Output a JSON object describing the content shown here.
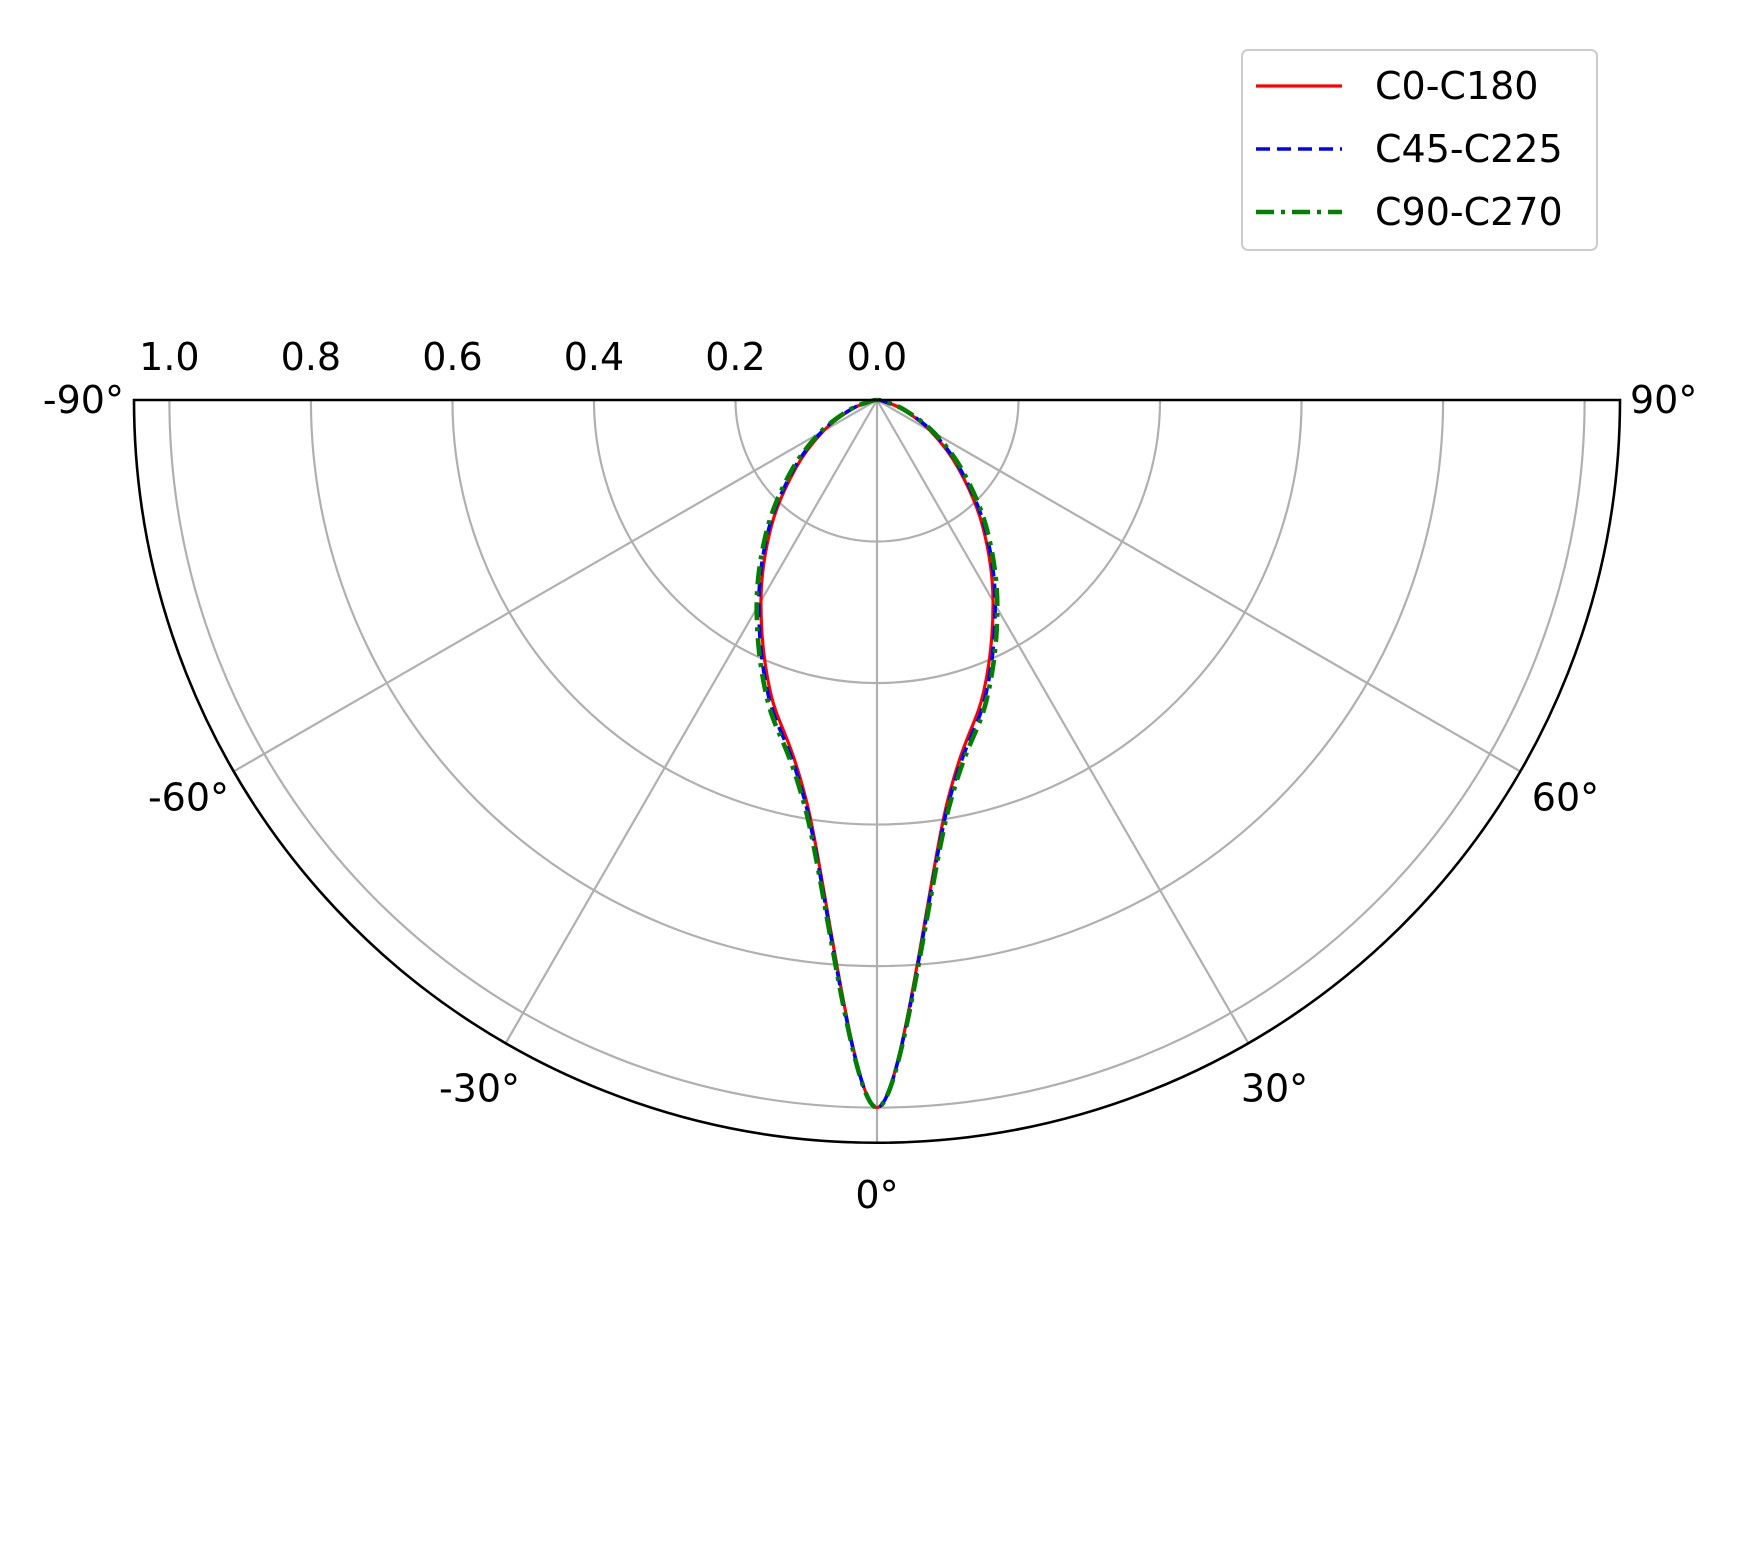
{
  "chart_data": {
    "type": "polar",
    "angle_range_deg": [
      -90,
      90
    ],
    "angle_zero_location": "bottom",
    "radial_axis_inverted": true,
    "radial_range": [
      0.0,
      1.05
    ],
    "radial_ticks": [
      "0.0",
      "0.2",
      "0.4",
      "0.6",
      "0.8",
      "1.0"
    ],
    "radial_tick_values": [
      0.0,
      0.2,
      0.4,
      0.6,
      0.8,
      1.0
    ],
    "angle_ticks": [
      "-90°",
      "-60°",
      "-30°",
      "0°",
      "30°",
      "60°",
      "90°"
    ],
    "angle_tick_values": [
      -90,
      -60,
      -30,
      0,
      30,
      60,
      90
    ],
    "grid": true,
    "legend_position": "top-right",
    "series": [
      {
        "name": "C0-C180",
        "color": "#ff0000",
        "linestyle": "solid",
        "angles": [
          -90,
          -80,
          -70,
          -60,
          -50,
          -40,
          -30,
          -20,
          -10,
          0,
          10,
          20,
          30,
          40,
          50,
          60,
          70,
          80,
          90
        ],
        "values": [
          1.0,
          0.992,
          0.962,
          0.913,
          0.85,
          0.768,
          0.672,
          0.56,
          0.425,
          0.0,
          0.425,
          0.56,
          0.672,
          0.768,
          0.85,
          0.913,
          0.962,
          0.992,
          1.0
        ]
      },
      {
        "name": "C45-C225",
        "color": "#0000ff",
        "linestyle": "dashed",
        "angles": [
          -90,
          -80,
          -70,
          -60,
          -50,
          -40,
          -30,
          -20,
          -10,
          0,
          10,
          20,
          30,
          40,
          50,
          60,
          70,
          80,
          90
        ],
        "values": [
          1.0,
          0.992,
          0.96,
          0.909,
          0.845,
          0.762,
          0.666,
          0.553,
          0.42,
          0.0,
          0.42,
          0.553,
          0.666,
          0.762,
          0.845,
          0.909,
          0.96,
          0.992,
          1.0
        ]
      },
      {
        "name": "C90-C270",
        "color": "#008000",
        "linestyle": "dashdot",
        "angles": [
          -90,
          -80,
          -70,
          -60,
          -50,
          -40,
          -30,
          -20,
          -10,
          0,
          10,
          20,
          30,
          40,
          50,
          60,
          70,
          80,
          90
        ],
        "values": [
          1.0,
          0.991,
          0.958,
          0.906,
          0.84,
          0.757,
          0.66,
          0.548,
          0.415,
          0.0,
          0.415,
          0.548,
          0.66,
          0.757,
          0.84,
          0.906,
          0.958,
          0.991,
          1.0
        ]
      }
    ]
  }
}
